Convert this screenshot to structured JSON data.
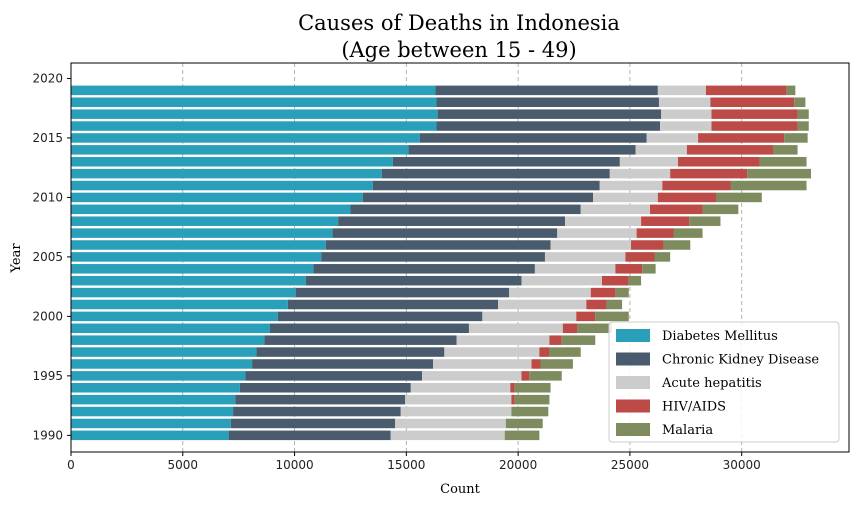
{
  "chart_data": {
    "type": "bar",
    "orientation": "horizontal",
    "stacked": true,
    "title_line1": "Causes of Deaths in Indonesia",
    "title_line2": "(Age between 15 - 49)",
    "xlabel": "Count",
    "ylabel": "Year",
    "xlim": [
      0,
      34800
    ],
    "xticks": [
      0,
      5000,
      10000,
      15000,
      20000,
      25000,
      30000
    ],
    "ylim": [
      1988.6,
      2021.3
    ],
    "yticks": [
      1990,
      1995,
      2000,
      2005,
      2010,
      2015,
      2020
    ],
    "grid": "x-axis dashed",
    "legend_position": "lower-right",
    "categories": [
      1990,
      1991,
      1992,
      1993,
      1994,
      1995,
      1996,
      1997,
      1998,
      1999,
      2000,
      2001,
      2002,
      2003,
      2004,
      2005,
      2006,
      2007,
      2008,
      2009,
      2010,
      2011,
      2012,
      2013,
      2014,
      2015,
      2016,
      2017,
      2018,
      2019
    ],
    "series": [
      {
        "name": "Diabetes Mellitus",
        "color": "#2a9fba",
        "values": [
          7050,
          7150,
          7250,
          7350,
          7550,
          7800,
          8100,
          8300,
          8650,
          8900,
          9250,
          9700,
          10050,
          10500,
          10850,
          11200,
          11400,
          11700,
          11950,
          12500,
          13050,
          13500,
          13900,
          14400,
          15100,
          15600,
          16350,
          16400,
          16350,
          16300
        ]
      },
      {
        "name": "Chronic Kidney Disease",
        "color": "#4a5b6d",
        "values": [
          7250,
          7350,
          7500,
          7600,
          7650,
          7900,
          8100,
          8400,
          8600,
          8900,
          9150,
          9400,
          9550,
          9650,
          9900,
          10000,
          10050,
          10050,
          10150,
          10300,
          10300,
          10150,
          10200,
          10150,
          10150,
          10150,
          10000,
          10000,
          9950,
          9950
        ]
      },
      {
        "name": "Acute hepatitis",
        "color": "#cccccc",
        "values": [
          5100,
          4950,
          4950,
          4750,
          4450,
          4450,
          4400,
          4250,
          4150,
          4200,
          4200,
          3950,
          3650,
          3600,
          3600,
          3600,
          3600,
          3550,
          3400,
          3100,
          2900,
          2800,
          2700,
          2600,
          2300,
          2300,
          2300,
          2250,
          2300,
          2150
        ]
      },
      {
        "name": "HIV/AIDS",
        "color": "#bc4a47",
        "values": [
          0,
          0,
          0,
          150,
          200,
          350,
          400,
          450,
          550,
          650,
          850,
          900,
          1100,
          1200,
          1200,
          1300,
          1450,
          1650,
          2150,
          2350,
          2600,
          3050,
          3450,
          3650,
          3850,
          3850,
          3850,
          3850,
          3750,
          3600
        ]
      },
      {
        "name": "Malaria",
        "color": "#7d8b5f",
        "values": [
          1550,
          1650,
          1650,
          1550,
          1600,
          1450,
          1450,
          1400,
          1500,
          1550,
          1500,
          700,
          600,
          550,
          600,
          700,
          1200,
          1300,
          1400,
          1600,
          2050,
          3400,
          2850,
          2100,
          1100,
          1050,
          500,
          500,
          500,
          400
        ]
      }
    ]
  }
}
